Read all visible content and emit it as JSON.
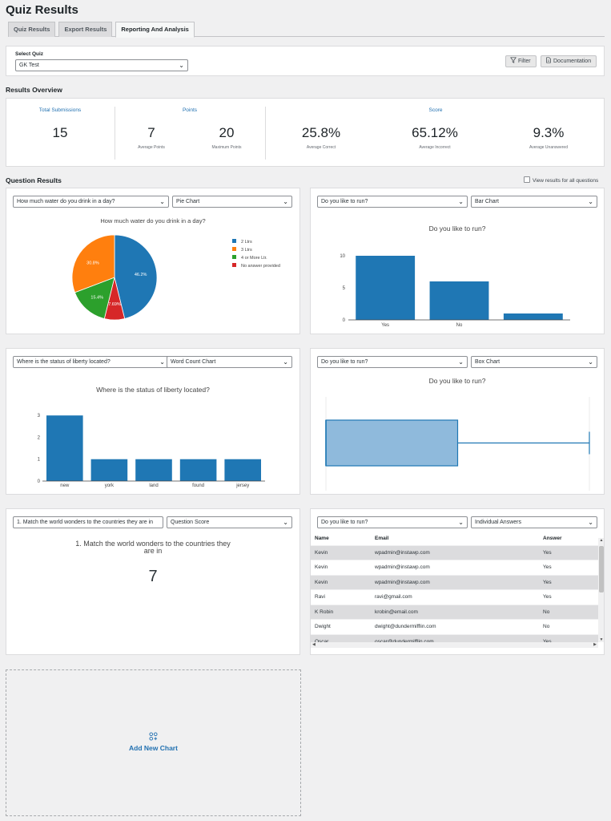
{
  "page": {
    "title": "Quiz Results"
  },
  "tabs": [
    {
      "label": "Quiz Results",
      "active": false
    },
    {
      "label": "Export Results",
      "active": false
    },
    {
      "label": "Reporting And Analysis",
      "active": true
    }
  ],
  "quiz_select": {
    "label": "Select Quiz",
    "value": "GK Test"
  },
  "toolbar": {
    "filter_label": "Filter",
    "documentation_label": "Documentation"
  },
  "overview": {
    "title": "Results Overview",
    "total_submissions": {
      "label": "Total Submissions",
      "value": "15"
    },
    "points": {
      "label": "Points",
      "average": {
        "value": "7",
        "label": "Average Points"
      },
      "maximum": {
        "value": "20",
        "label": "Maximum Points"
      }
    },
    "score": {
      "label": "Score",
      "correct": {
        "value": "25.8%",
        "label": "Average Correct"
      },
      "incorrect": {
        "value": "65.12%",
        "label": "Average Incorrect"
      },
      "unanswered": {
        "value": "9.3%",
        "label": "Average Unanswered"
      }
    }
  },
  "question_results": {
    "title": "Question Results",
    "view_all_label": "View results for all questions",
    "view_all_checked": false
  },
  "charts": {
    "pie": {
      "question": "How much water do you drink in a day?",
      "chart_type": "Pie Chart",
      "title": "How much water do you drink in a day?",
      "slices": [
        {
          "label": "2 Ltrs",
          "value": 46.2,
          "text": "46.2%",
          "color": "#1f77b4"
        },
        {
          "label": "No answer provided",
          "value": 7.69,
          "text": "7.69%",
          "color": "#d62728"
        },
        {
          "label": "4 or More Ltr.",
          "value": 15.4,
          "text": "15.4%",
          "color": "#2ca02c"
        },
        {
          "label": "3 Ltrs",
          "value": 30.8,
          "text": "30.8%",
          "color": "#ff7f0e"
        }
      ],
      "legend": [
        {
          "label": "2 Ltrs",
          "color": "#1f77b4"
        },
        {
          "label": "3 Ltrs",
          "color": "#ff7f0e"
        },
        {
          "label": "4 or More Ltr.",
          "color": "#2ca02c"
        },
        {
          "label": "No answer provided",
          "color": "#d62728"
        }
      ]
    },
    "bar": {
      "question": "Do you like to run?",
      "chart_type": "Bar Chart",
      "title": "Do you like to run?"
    },
    "word": {
      "question": "Where is the status of liberty located?",
      "chart_type": "Word Count Chart",
      "title": "Where is the status of liberty located?"
    },
    "box": {
      "question": "Do you like to run?",
      "chart_type": "Box Chart",
      "title": "Do you like to run?"
    },
    "score": {
      "question": "1. Match the world wonders to the countries they are in",
      "chart_type": "Question Score",
      "title_line1": "1. Match the world wonders to the countries they",
      "title_line2": "are in",
      "value": "7"
    },
    "answers": {
      "question": "Do you like to run?",
      "chart_type": "Individual Answers",
      "headers": {
        "name": "Name",
        "email": "Email",
        "answer": "Answer"
      },
      "rows": [
        {
          "name": "Kevin",
          "email": "wpadmin@instawp.com",
          "answer": "Yes"
        },
        {
          "name": "Kevin",
          "email": "wpadmin@instawp.com",
          "answer": "Yes"
        },
        {
          "name": "Kevin",
          "email": "wpadmin@instawp.com",
          "answer": "Yes"
        },
        {
          "name": "Ravi",
          "email": "ravi@gmail.com",
          "answer": "Yes"
        },
        {
          "name": "K Robin",
          "email": "krobin@email.com",
          "answer": "No"
        },
        {
          "name": "Dwight",
          "email": "dwight@dundermifflin.com",
          "answer": "No"
        },
        {
          "name": "Oscar",
          "email": "oscar@dundermifflin.com",
          "answer": "Yes"
        }
      ]
    }
  },
  "add_chart": {
    "label": "Add New Chart"
  },
  "chart_data": [
    {
      "type": "pie",
      "title": "How much water do you drink in a day?",
      "categories": [
        "2 Ltrs",
        "No answer provided",
        "4 or More Ltr.",
        "3 Ltrs"
      ],
      "values": [
        46.2,
        7.69,
        15.4,
        30.8
      ],
      "legend": "right"
    },
    {
      "type": "bar",
      "title": "Do you like to run?",
      "categories": [
        "Yes",
        "No",
        ""
      ],
      "values": [
        10,
        6,
        1
      ],
      "yticks": [
        0,
        5,
        10
      ],
      "ylim": [
        0,
        11
      ]
    },
    {
      "type": "bar",
      "title": "Where is the status of liberty located?",
      "categories": [
        "new",
        "york",
        "land",
        "found",
        "jersey"
      ],
      "values": [
        3,
        1,
        1,
        1,
        1
      ],
      "yticks": [
        0,
        1,
        2,
        3
      ],
      "ylim": [
        0,
        3.3
      ]
    },
    {
      "type": "box",
      "title": "Do you like to run?",
      "orientation": "horizontal",
      "q1": 0,
      "median": 0,
      "q3": 1,
      "whisker_high": 2,
      "xlim": [
        0,
        2
      ]
    }
  ]
}
